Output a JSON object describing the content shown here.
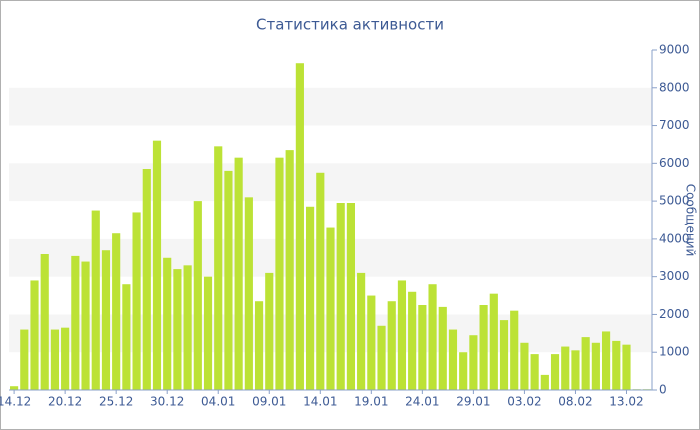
{
  "chart_data": {
    "type": "bar",
    "title": "Статистика активности",
    "y_label": "Сообщений",
    "categories": [
      "14.12",
      null,
      null,
      null,
      null,
      "20.12",
      null,
      null,
      null,
      null,
      "25.12",
      null,
      null,
      null,
      null,
      "30.12",
      null,
      null,
      null,
      null,
      "04.01",
      null,
      null,
      null,
      null,
      "09.01",
      null,
      null,
      null,
      null,
      "14.01",
      null,
      null,
      null,
      null,
      "19.01",
      null,
      null,
      null,
      null,
      "24.01",
      null,
      null,
      null,
      null,
      "29.01",
      null,
      null,
      null,
      null,
      "03.02",
      null,
      null,
      null,
      null,
      "08.02",
      null,
      null,
      null,
      null,
      "13.02",
      null,
      null
    ],
    "values": [
      100,
      1600,
      2900,
      3600,
      1600,
      1650,
      3550,
      3400,
      4750,
      3700,
      4150,
      2800,
      4700,
      5850,
      6600,
      3500,
      3200,
      3300,
      5000,
      3000,
      6450,
      5800,
      6150,
      5100,
      2350,
      3100,
      6150,
      6350,
      8650,
      4850,
      5750,
      4300,
      4950,
      4950,
      3100,
      2500,
      1700,
      2350,
      2900,
      2600,
      2250,
      2800,
      2200,
      1600,
      1000,
      1450,
      2250,
      2550,
      1850,
      2100,
      1250,
      950,
      400,
      950,
      1150,
      1050,
      1400,
      1250,
      1550,
      1300,
      1200,
      20,
      20
    ],
    "color": "#bce236",
    "ylim": [
      0,
      9000
    ],
    "yticks": [
      0,
      1000,
      2000,
      3000,
      4000,
      5000,
      6000,
      7000,
      8000,
      9000
    ],
    "grid": true,
    "y_axis_side": "right"
  }
}
